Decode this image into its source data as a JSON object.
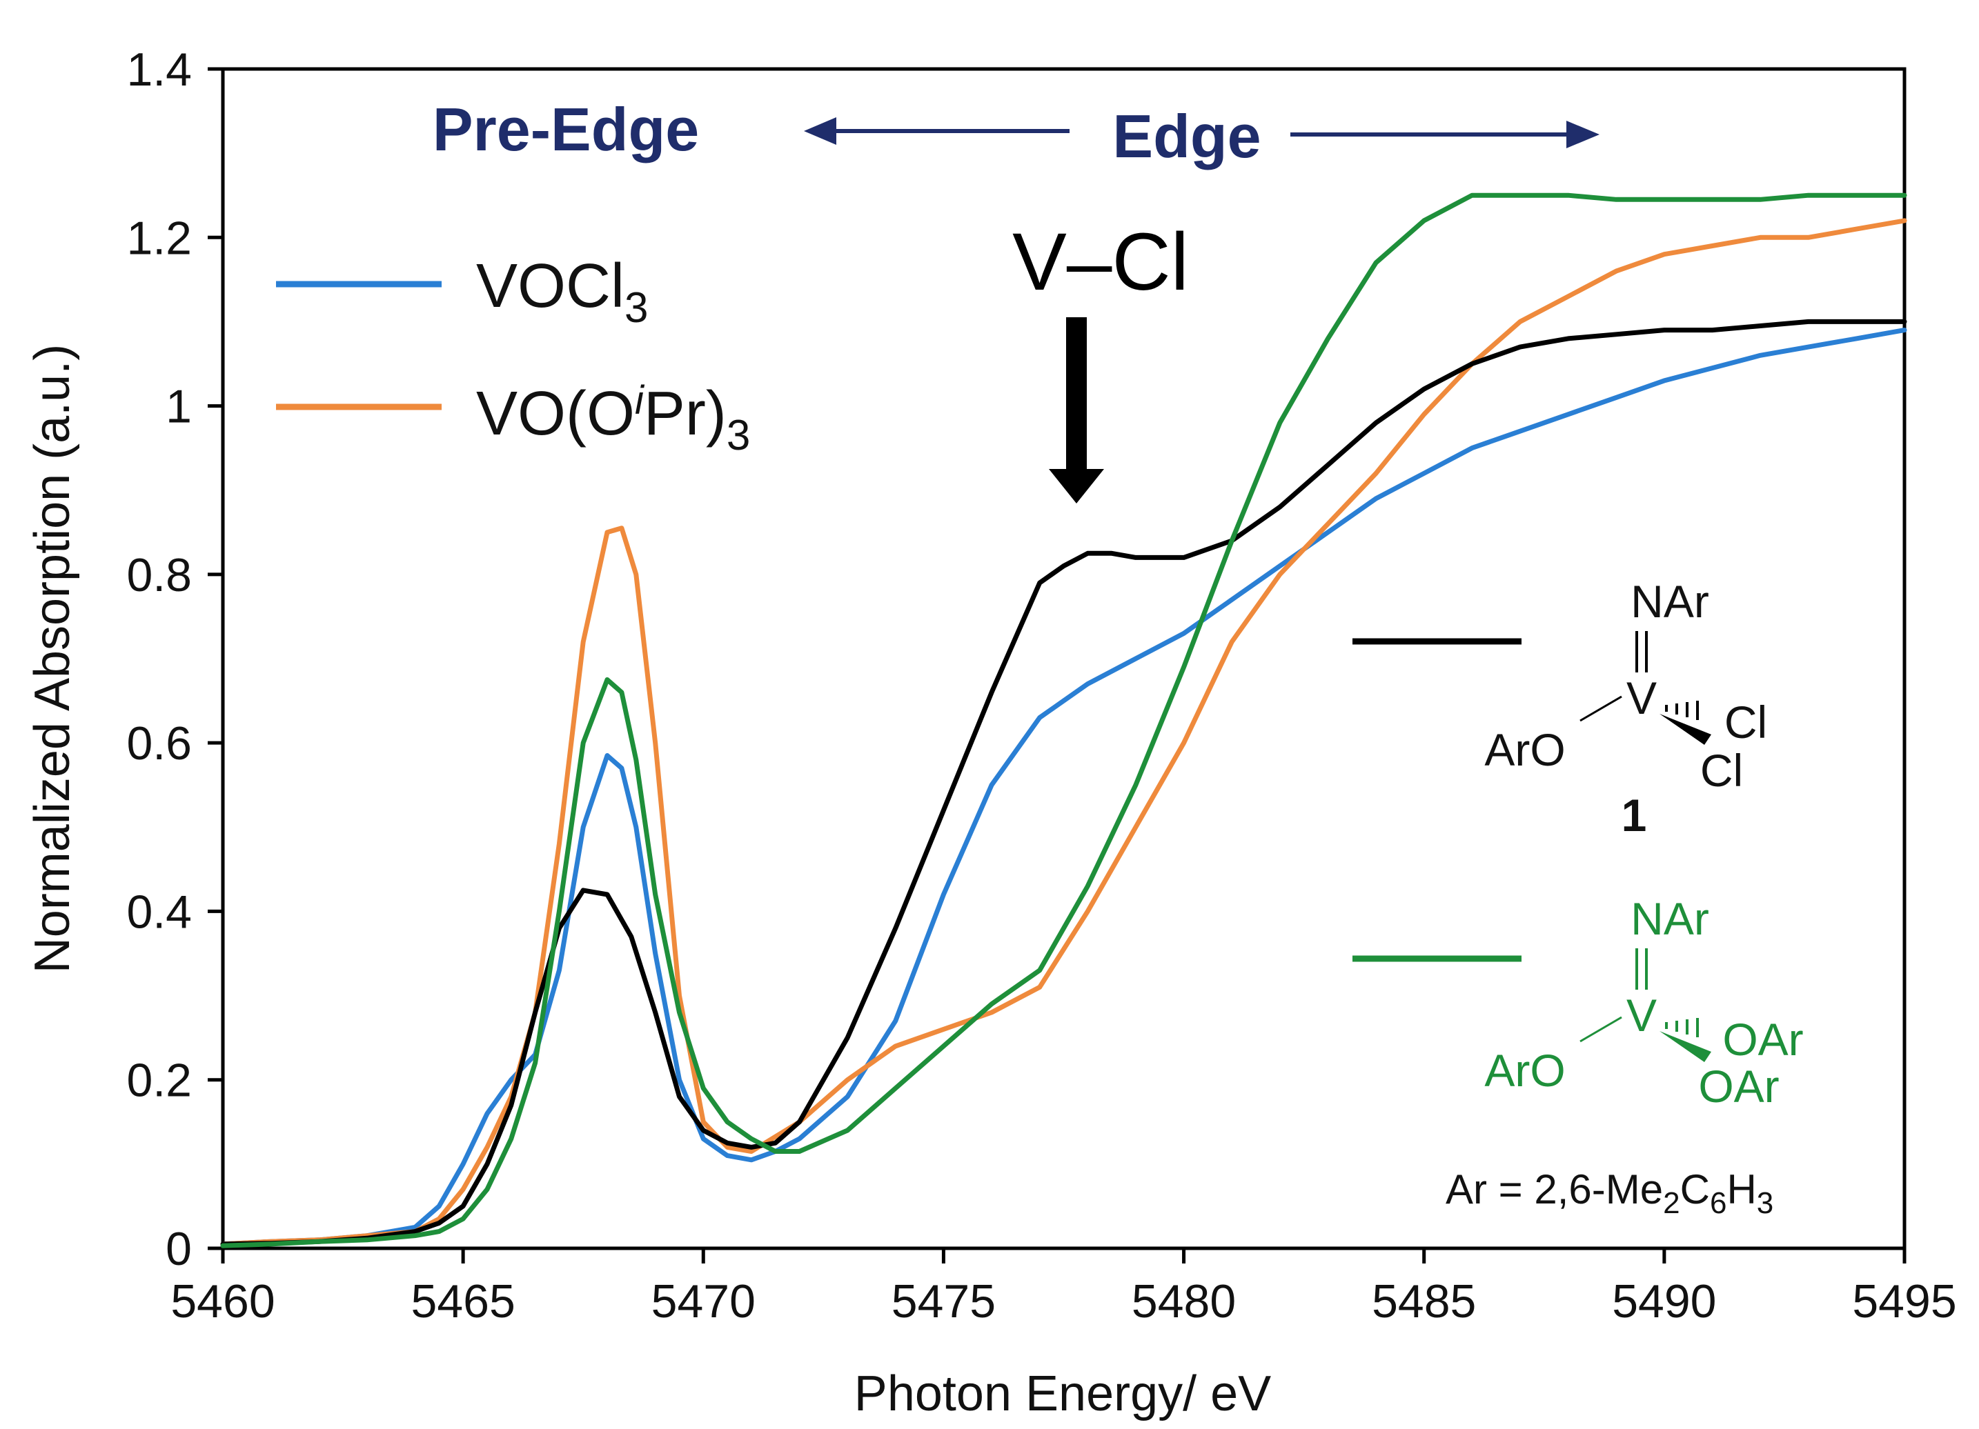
{
  "chart_data": {
    "type": "line",
    "title": "",
    "xlabel": "Photon Energy/ eV",
    "ylabel": "Normalized Absorption (a.u.)",
    "xlim": [
      5460,
      5495
    ],
    "ylim": [
      0,
      1.4
    ],
    "xticks": [
      "5460",
      "5465",
      "5470",
      "5475",
      "5480",
      "5485",
      "5490",
      "5495"
    ],
    "yticks": [
      "0",
      "0.2",
      "0.4",
      "0.6",
      "0.8",
      "1",
      "1.2",
      "1.4"
    ],
    "grid": false,
    "legend_position": "top-left",
    "series": [
      {
        "name": "VOCl3",
        "label_main": "VOCl",
        "label_sub": "3",
        "color": "#2a7fd4",
        "x": [
          5460,
          5461,
          5462,
          5463,
          5464,
          5464.5,
          5465,
          5465.5,
          5466,
          5466.5,
          5467,
          5467.5,
          5468,
          5468.3,
          5468.6,
          5469,
          5469.5,
          5470,
          5470.5,
          5471,
          5471.5,
          5472,
          5473,
          5474,
          5475,
          5476,
          5477,
          5478,
          5479,
          5480,
          5481,
          5482,
          5483,
          5484,
          5485,
          5486,
          5487,
          5488,
          5489,
          5490,
          5491,
          5492,
          5493,
          5494,
          5495
        ],
        "y": [
          0.005,
          0.008,
          0.01,
          0.015,
          0.025,
          0.05,
          0.1,
          0.16,
          0.2,
          0.23,
          0.33,
          0.5,
          0.585,
          0.57,
          0.5,
          0.35,
          0.2,
          0.13,
          0.11,
          0.105,
          0.115,
          0.13,
          0.18,
          0.27,
          0.42,
          0.55,
          0.63,
          0.67,
          0.7,
          0.73,
          0.77,
          0.81,
          0.85,
          0.89,
          0.92,
          0.95,
          0.97,
          0.99,
          1.01,
          1.03,
          1.045,
          1.06,
          1.07,
          1.08,
          1.09
        ]
      },
      {
        "name": "VO(OiPr)3",
        "label_main": "VO(O",
        "label_italic": "i",
        "label_rest": "Pr)",
        "label_sub": "3",
        "color": "#ef8a3c",
        "x": [
          5460,
          5461,
          5462,
          5463,
          5464,
          5464.5,
          5465,
          5465.5,
          5466,
          5466.5,
          5467,
          5467.5,
          5468,
          5468.3,
          5468.6,
          5469,
          5469.5,
          5470,
          5470.5,
          5471,
          5472,
          5473,
          5474,
          5475,
          5476,
          5477,
          5478,
          5479,
          5480,
          5481,
          5482,
          5483,
          5484,
          5485,
          5486,
          5487,
          5488,
          5489,
          5490,
          5491,
          5492,
          5493,
          5494,
          5495
        ],
        "y": [
          0.005,
          0.008,
          0.01,
          0.015,
          0.02,
          0.035,
          0.07,
          0.12,
          0.18,
          0.28,
          0.48,
          0.72,
          0.85,
          0.855,
          0.8,
          0.6,
          0.3,
          0.15,
          0.12,
          0.115,
          0.15,
          0.2,
          0.24,
          0.26,
          0.28,
          0.31,
          0.4,
          0.5,
          0.6,
          0.72,
          0.8,
          0.86,
          0.92,
          0.99,
          1.05,
          1.1,
          1.13,
          1.16,
          1.18,
          1.19,
          1.2,
          1.2,
          1.21,
          1.22
        ]
      },
      {
        "name": "black complex 1",
        "color": "#000000",
        "x": [
          5460,
          5461,
          5462,
          5463,
          5464,
          5464.5,
          5465,
          5465.5,
          5466,
          5466.5,
          5467,
          5467.5,
          5468,
          5468.5,
          5469,
          5469.5,
          5470,
          5470.5,
          5471,
          5471.5,
          5472,
          5473,
          5474,
          5475,
          5476,
          5477,
          5477.5,
          5478,
          5478.5,
          5479,
          5479.5,
          5480,
          5481,
          5482,
          5483,
          5484,
          5485,
          5486,
          5487,
          5488,
          5489,
          5490,
          5491,
          5492,
          5493,
          5494,
          5495
        ],
        "y": [
          0.005,
          0.006,
          0.008,
          0.012,
          0.02,
          0.03,
          0.05,
          0.1,
          0.17,
          0.28,
          0.38,
          0.425,
          0.42,
          0.37,
          0.28,
          0.18,
          0.14,
          0.125,
          0.12,
          0.125,
          0.15,
          0.25,
          0.38,
          0.52,
          0.66,
          0.79,
          0.81,
          0.825,
          0.825,
          0.82,
          0.82,
          0.82,
          0.84,
          0.88,
          0.93,
          0.98,
          1.02,
          1.05,
          1.07,
          1.08,
          1.085,
          1.09,
          1.09,
          1.095,
          1.1,
          1.1,
          1.1
        ]
      },
      {
        "name": "green complex",
        "color": "#1e8f3a",
        "x": [
          5460,
          5461,
          5462,
          5463,
          5464,
          5464.5,
          5465,
          5465.5,
          5466,
          5466.5,
          5467,
          5467.5,
          5468,
          5468.3,
          5468.6,
          5469,
          5469.5,
          5470,
          5470.5,
          5471,
          5471.5,
          5472,
          5473,
          5474,
          5475,
          5476,
          5477,
          5478,
          5479,
          5480,
          5481,
          5482,
          5483,
          5484,
          5485,
          5486,
          5487,
          5488,
          5489,
          5490,
          5491,
          5492,
          5493,
          5494,
          5495
        ],
        "y": [
          0.003,
          0.005,
          0.008,
          0.01,
          0.015,
          0.02,
          0.035,
          0.07,
          0.13,
          0.22,
          0.4,
          0.6,
          0.675,
          0.66,
          0.58,
          0.42,
          0.28,
          0.19,
          0.15,
          0.13,
          0.115,
          0.115,
          0.14,
          0.19,
          0.24,
          0.29,
          0.33,
          0.43,
          0.55,
          0.69,
          0.84,
          0.98,
          1.08,
          1.17,
          1.22,
          1.25,
          1.25,
          1.25,
          1.245,
          1.245,
          1.245,
          1.245,
          1.25,
          1.25,
          1.25
        ]
      }
    ],
    "annotations": {
      "pre_edge": "Pre-Edge",
      "edge": "Edge",
      "v_cl": "V–Cl"
    }
  },
  "structures": {
    "complex1": {
      "top": "NAr",
      "center": "V",
      "left": "ArO",
      "right1": "Cl",
      "right2": "Cl",
      "label": "1"
    },
    "complex2": {
      "top": "NAr",
      "center": "V",
      "left": "ArO",
      "right1": "OAr",
      "right2": "OAr"
    },
    "footnote": {
      "prefix": "Ar = 2,6-Me",
      "sub1": "2",
      "mid": "C",
      "sub2": "6",
      "mid2": "H",
      "sub3": "3"
    }
  }
}
